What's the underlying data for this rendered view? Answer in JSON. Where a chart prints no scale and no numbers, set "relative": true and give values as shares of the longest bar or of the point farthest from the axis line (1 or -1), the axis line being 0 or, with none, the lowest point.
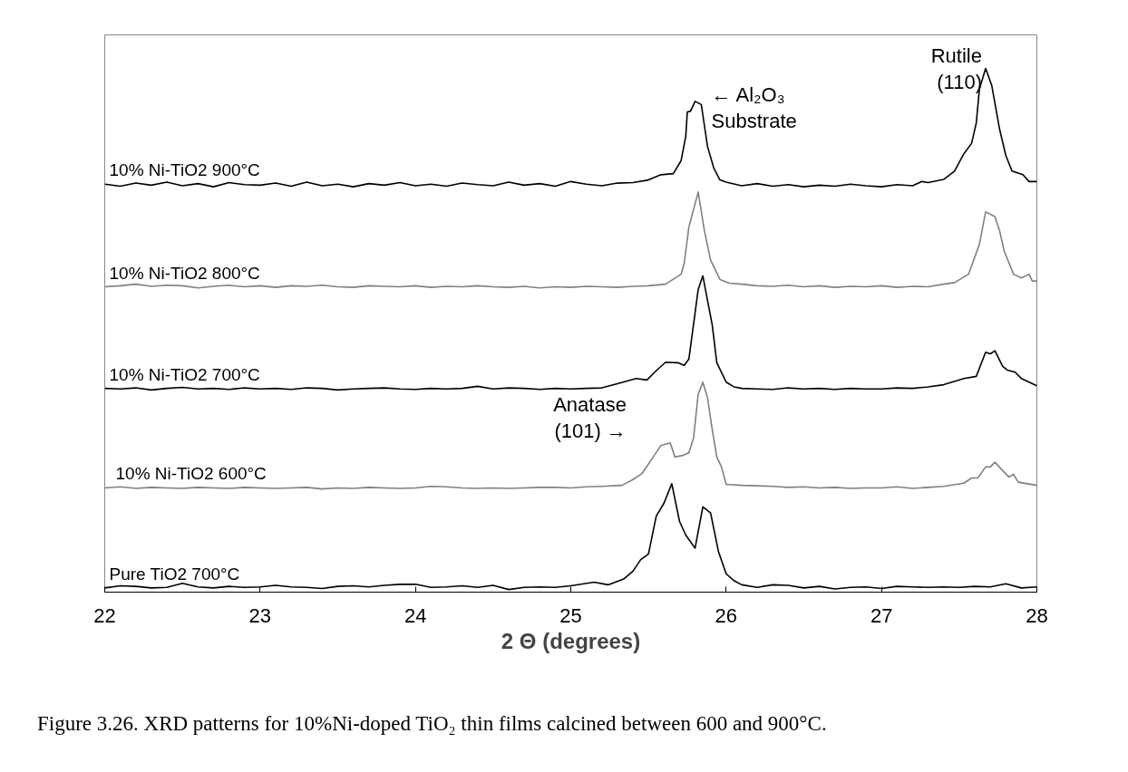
{
  "chart_data": {
    "type": "line",
    "relative": true,
    "xlabel": "2 Θ (degrees)",
    "xlim": [
      22,
      28
    ],
    "xticks": [
      22,
      23,
      24,
      25,
      26,
      27,
      28
    ],
    "grid": false,
    "marker": "none",
    "line_style": "solid",
    "series": [
      {
        "name": "10% Ni-TiO2 900°C",
        "color": "#000000",
        "x": [
          22.0,
          22.1,
          22.2,
          22.3,
          22.4,
          22.5,
          22.6,
          22.7,
          22.8,
          22.9,
          23.0,
          23.1,
          23.2,
          23.3,
          23.4,
          23.5,
          23.6,
          23.7,
          23.8,
          23.9,
          24.0,
          24.1,
          24.2,
          24.3,
          24.4,
          24.5,
          24.6,
          24.7,
          24.8,
          24.9,
          25.0,
          25.1,
          25.2,
          25.3,
          25.4,
          25.5,
          25.58,
          25.66,
          25.71,
          25.74,
          25.75,
          25.77,
          25.8,
          25.84,
          25.86,
          25.88,
          25.92,
          25.96,
          26.0,
          26.1,
          26.2,
          26.3,
          26.4,
          26.5,
          26.6,
          26.7,
          26.8,
          26.9,
          27.0,
          27.1,
          27.2,
          27.26,
          27.3,
          27.4,
          27.47,
          27.53,
          27.58,
          27.61,
          27.63,
          27.67,
          27.71,
          27.76,
          27.8,
          27.84,
          27.91,
          27.95,
          28.0
        ],
        "values": [
          0.779,
          0.775,
          0.781,
          0.777,
          0.783,
          0.776,
          0.78,
          0.774,
          0.782,
          0.778,
          0.777,
          0.781,
          0.775,
          0.783,
          0.776,
          0.779,
          0.774,
          0.78,
          0.777,
          0.782,
          0.776,
          0.779,
          0.775,
          0.781,
          0.778,
          0.776,
          0.783,
          0.777,
          0.78,
          0.775,
          0.784,
          0.779,
          0.776,
          0.781,
          0.782,
          0.787,
          0.797,
          0.799,
          0.824,
          0.87,
          0.917,
          0.918,
          0.937,
          0.931,
          0.891,
          0.851,
          0.81,
          0.787,
          0.783,
          0.776,
          0.78,
          0.775,
          0.778,
          0.774,
          0.777,
          0.775,
          0.779,
          0.776,
          0.774,
          0.778,
          0.776,
          0.784,
          0.782,
          0.788,
          0.804,
          0.837,
          0.857,
          0.896,
          0.96,
          1.0,
          0.967,
          0.884,
          0.834,
          0.804,
          0.797,
          0.784,
          0.784
        ]
      },
      {
        "name": "10% Ni-TiO2 800°C",
        "color": "#808080",
        "x": [
          22.0,
          22.1,
          22.2,
          22.3,
          22.4,
          22.5,
          22.6,
          22.7,
          22.8,
          22.9,
          23.0,
          23.1,
          23.2,
          23.3,
          23.4,
          23.5,
          23.6,
          23.7,
          23.8,
          23.9,
          24.0,
          24.1,
          24.2,
          24.3,
          24.4,
          24.5,
          24.6,
          24.7,
          24.8,
          24.9,
          25.0,
          25.1,
          25.2,
          25.3,
          25.4,
          25.5,
          25.61,
          25.71,
          25.73,
          25.76,
          25.82,
          25.86,
          25.9,
          25.96,
          26.02,
          26.1,
          26.2,
          26.3,
          26.4,
          26.5,
          26.6,
          26.7,
          26.8,
          26.9,
          27.0,
          27.1,
          27.2,
          27.3,
          27.4,
          27.47,
          27.56,
          27.63,
          27.67,
          27.73,
          27.76,
          27.79,
          27.85,
          27.9,
          27.95,
          27.97,
          28.0
        ],
        "values": [
          0.583,
          0.585,
          0.588,
          0.584,
          0.586,
          0.585,
          0.581,
          0.584,
          0.586,
          0.583,
          0.585,
          0.582,
          0.585,
          0.584,
          0.586,
          0.583,
          0.582,
          0.585,
          0.584,
          0.583,
          0.585,
          0.582,
          0.584,
          0.583,
          0.585,
          0.583,
          0.582,
          0.584,
          0.581,
          0.583,
          0.582,
          0.584,
          0.583,
          0.582,
          0.584,
          0.585,
          0.588,
          0.607,
          0.628,
          0.697,
          0.764,
          0.69,
          0.634,
          0.597,
          0.59,
          0.588,
          0.585,
          0.584,
          0.586,
          0.583,
          0.585,
          0.582,
          0.584,
          0.583,
          0.585,
          0.582,
          0.584,
          0.583,
          0.588,
          0.591,
          0.607,
          0.664,
          0.726,
          0.717,
          0.69,
          0.651,
          0.607,
          0.6,
          0.607,
          0.594,
          0.594
        ]
      },
      {
        "name": "10% Ni-TiO2 700°C",
        "color": "#000000",
        "x": [
          22.0,
          22.1,
          22.2,
          22.3,
          22.4,
          22.5,
          22.6,
          22.7,
          22.8,
          22.9,
          23.0,
          23.1,
          23.2,
          23.3,
          23.4,
          23.5,
          23.6,
          23.7,
          23.8,
          23.9,
          24.0,
          24.1,
          24.2,
          24.3,
          24.4,
          24.5,
          24.6,
          24.7,
          24.8,
          24.9,
          25.0,
          25.1,
          25.2,
          25.3,
          25.42,
          25.49,
          25.54,
          25.61,
          25.69,
          25.73,
          25.76,
          25.79,
          25.82,
          25.85,
          25.88,
          25.91,
          25.94,
          26.0,
          26.05,
          26.1,
          26.2,
          26.3,
          26.4,
          26.5,
          26.6,
          26.7,
          26.8,
          26.9,
          27.0,
          27.1,
          27.2,
          27.3,
          27.4,
          27.53,
          27.61,
          27.67,
          27.7,
          27.73,
          27.78,
          27.81,
          27.86,
          27.9,
          28.0
        ],
        "values": [
          0.389,
          0.388,
          0.39,
          0.386,
          0.389,
          0.391,
          0.388,
          0.389,
          0.387,
          0.39,
          0.388,
          0.389,
          0.387,
          0.39,
          0.389,
          0.386,
          0.388,
          0.389,
          0.39,
          0.388,
          0.387,
          0.389,
          0.388,
          0.389,
          0.393,
          0.388,
          0.39,
          0.389,
          0.387,
          0.389,
          0.388,
          0.389,
          0.39,
          0.398,
          0.408,
          0.405,
          0.42,
          0.439,
          0.438,
          0.433,
          0.445,
          0.511,
          0.578,
          0.604,
          0.557,
          0.511,
          0.438,
          0.401,
          0.392,
          0.389,
          0.388,
          0.387,
          0.39,
          0.388,
          0.389,
          0.387,
          0.389,
          0.388,
          0.388,
          0.39,
          0.389,
          0.392,
          0.396,
          0.408,
          0.412,
          0.458,
          0.455,
          0.461,
          0.431,
          0.424,
          0.42,
          0.408,
          0.394
        ]
      },
      {
        "name": "10% Ni-TiO2 600°C",
        "color": "#808080",
        "x": [
          22.0,
          22.1,
          22.2,
          22.3,
          22.4,
          22.5,
          22.6,
          22.7,
          22.8,
          22.9,
          23.0,
          23.1,
          23.2,
          23.3,
          23.4,
          23.5,
          23.6,
          23.7,
          23.8,
          23.9,
          24.0,
          24.1,
          24.2,
          24.3,
          24.4,
          24.5,
          24.6,
          24.7,
          24.8,
          24.9,
          25.0,
          25.1,
          25.2,
          25.33,
          25.4,
          25.46,
          25.53,
          25.58,
          25.64,
          25.67,
          25.72,
          25.76,
          25.79,
          25.82,
          25.85,
          25.88,
          25.91,
          25.94,
          25.97,
          26.0,
          26.1,
          26.2,
          26.3,
          26.4,
          26.5,
          26.6,
          26.7,
          26.8,
          26.9,
          27.0,
          27.1,
          27.2,
          27.3,
          27.4,
          27.53,
          27.58,
          27.62,
          27.67,
          27.7,
          27.73,
          27.78,
          27.82,
          27.85,
          27.88,
          28.0
        ],
        "values": [
          0.199,
          0.201,
          0.198,
          0.2,
          0.199,
          0.198,
          0.2,
          0.199,
          0.198,
          0.2,
          0.199,
          0.198,
          0.199,
          0.2,
          0.197,
          0.199,
          0.198,
          0.2,
          0.199,
          0.198,
          0.199,
          0.202,
          0.201,
          0.199,
          0.198,
          0.199,
          0.198,
          0.199,
          0.2,
          0.2,
          0.199,
          0.201,
          0.202,
          0.204,
          0.215,
          0.227,
          0.258,
          0.28,
          0.285,
          0.258,
          0.261,
          0.266,
          0.294,
          0.378,
          0.401,
          0.371,
          0.311,
          0.258,
          0.239,
          0.206,
          0.204,
          0.203,
          0.202,
          0.2,
          0.201,
          0.199,
          0.2,
          0.198,
          0.199,
          0.199,
          0.201,
          0.198,
          0.2,
          0.202,
          0.208,
          0.218,
          0.218,
          0.239,
          0.239,
          0.248,
          0.232,
          0.22,
          0.225,
          0.21,
          0.204
        ]
      },
      {
        "name": "Pure TiO2 700°C",
        "color": "#000000",
        "x": [
          22.0,
          22.1,
          22.2,
          22.3,
          22.4,
          22.5,
          22.6,
          22.7,
          22.8,
          22.9,
          23.0,
          23.1,
          23.2,
          23.3,
          23.4,
          23.5,
          23.6,
          23.7,
          23.8,
          23.9,
          24.0,
          24.1,
          24.2,
          24.3,
          24.4,
          24.5,
          24.6,
          24.7,
          24.8,
          24.9,
          25.0,
          25.15,
          25.24,
          25.34,
          25.4,
          25.45,
          25.5,
          25.55,
          25.6,
          25.65,
          25.7,
          25.74,
          25.8,
          25.85,
          25.9,
          25.95,
          26.0,
          26.05,
          26.1,
          26.2,
          26.3,
          26.4,
          26.5,
          26.6,
          26.7,
          26.8,
          26.9,
          27.0,
          27.1,
          27.2,
          27.3,
          27.4,
          27.5,
          27.6,
          27.7,
          27.8,
          27.9,
          28.0
        ],
        "values": [
          0.008,
          0.012,
          0.011,
          0.008,
          0.009,
          0.017,
          0.01,
          0.008,
          0.011,
          0.009,
          0.01,
          0.013,
          0.01,
          0.009,
          0.007,
          0.011,
          0.012,
          0.01,
          0.013,
          0.015,
          0.015,
          0.009,
          0.01,
          0.012,
          0.009,
          0.013,
          0.005,
          0.009,
          0.01,
          0.009,
          0.012,
          0.019,
          0.014,
          0.025,
          0.04,
          0.062,
          0.073,
          0.145,
          0.17,
          0.207,
          0.135,
          0.109,
          0.084,
          0.163,
          0.151,
          0.078,
          0.035,
          0.022,
          0.014,
          0.009,
          0.014,
          0.013,
          0.008,
          0.011,
          0.006,
          0.009,
          0.01,
          0.007,
          0.011,
          0.01,
          0.009,
          0.01,
          0.009,
          0.011,
          0.01,
          0.016,
          0.008,
          0.01
        ]
      }
    ],
    "annotations": [
      {
        "text": "← Al₂O₃\nSubstrate",
        "x": 25.8,
        "y": 0.937
      },
      {
        "text": "Rutile\n(110)",
        "x": 27.67,
        "y": 1.0
      },
      {
        "text": "Anatase\n(101) →",
        "x": 25.58,
        "y": 0.28
      },
      "Figure 3.26. XRD patterns for 10%Ni-doped TiO₂ thin films calcined between 600 and 900°C."
    ]
  }
}
